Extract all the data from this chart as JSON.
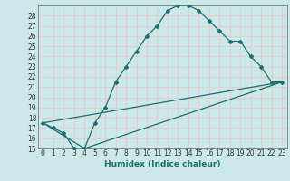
{
  "xlabel": "Humidex (Indice chaleur)",
  "bg_color": "#cde8e8",
  "grid_color": "#b0d8d8",
  "line_color": "#1a7070",
  "xlim": [
    -0.5,
    23.5
  ],
  "ylim": [
    15,
    29
  ],
  "xticks": [
    0,
    1,
    2,
    3,
    4,
    5,
    6,
    7,
    8,
    9,
    10,
    11,
    12,
    13,
    14,
    15,
    16,
    17,
    18,
    19,
    20,
    21,
    22,
    23
  ],
  "yticks": [
    15,
    16,
    17,
    18,
    19,
    20,
    21,
    22,
    23,
    24,
    25,
    26,
    27,
    28
  ],
  "line1_x": [
    0,
    1,
    2,
    3,
    4,
    5,
    6,
    7,
    8,
    9,
    10,
    11,
    12,
    13,
    14,
    15,
    16,
    17,
    18,
    19,
    20,
    21,
    22,
    23
  ],
  "line1_y": [
    17.5,
    17.0,
    16.5,
    15.0,
    15.0,
    17.5,
    19.0,
    21.5,
    23.0,
    24.5,
    26.0,
    27.0,
    28.5,
    29.0,
    29.0,
    28.5,
    27.5,
    26.5,
    25.5,
    25.5,
    24.0,
    23.0,
    21.5,
    21.5
  ],
  "line2_x": [
    0,
    4,
    23
  ],
  "line2_y": [
    17.5,
    15.0,
    21.5
  ],
  "line3_x": [
    0,
    23
  ],
  "line3_y": [
    17.5,
    21.5
  ],
  "tick_fontsize": 5.5,
  "xlabel_fontsize": 6.5
}
